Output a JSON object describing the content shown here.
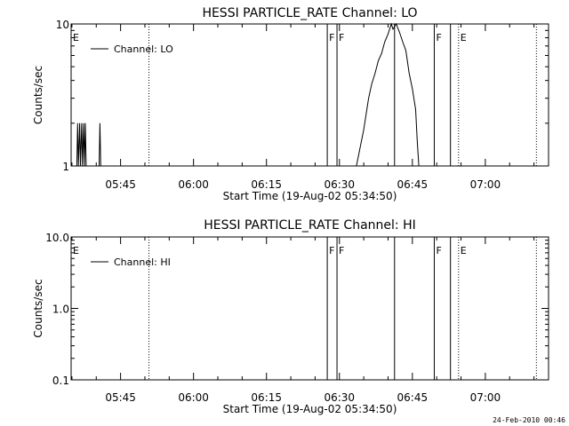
{
  "footer_timestamp": "24-Feb-2010 00:46",
  "chart_data": [
    {
      "type": "line",
      "title": "HESSI PARTICLE_RATE Channel: LO",
      "xlabel": "Start Time (19-Aug-02 05:34:50)",
      "ylabel": "Counts/sec",
      "yscale": "log",
      "ylim": [
        1,
        10
      ],
      "yticks": [
        1,
        10
      ],
      "ytick_labels": [
        "1",
        "10"
      ],
      "xlim": [
        "05:34:50",
        "07:13:00"
      ],
      "xticks": [
        "05:45",
        "06:00",
        "06:15",
        "06:30",
        "06:45",
        "07:00"
      ],
      "legend": {
        "location": "top-left",
        "entries": [
          "Channel: LO"
        ]
      },
      "series": [
        {
          "name": "Channel: LO",
          "points": [
            [
              "05:36:00",
              1
            ],
            [
              "05:36:10",
              2
            ],
            [
              "05:36:20",
              1
            ],
            [
              "05:36:35",
              2
            ],
            [
              "05:36:45",
              1
            ],
            [
              "05:37:00",
              2
            ],
            [
              "05:37:10",
              1
            ],
            [
              "05:37:25",
              2
            ],
            [
              "05:37:35",
              1
            ],
            [
              "05:37:45",
              2
            ],
            [
              "05:37:55",
              1
            ],
            [
              "05:40:35",
              1
            ],
            [
              "05:40:45",
              2
            ],
            [
              "05:40:55",
              1
            ],
            [
              "06:33:30",
              1
            ],
            [
              "06:35:00",
              1.8
            ],
            [
              "06:36:00",
              3
            ],
            [
              "06:36:40",
              3.8
            ],
            [
              "06:37:20",
              4.5
            ],
            [
              "06:38:00",
              5.5
            ],
            [
              "06:38:40",
              6.2
            ],
            [
              "06:39:20",
              7.5
            ],
            [
              "06:40:00",
              8.5
            ],
            [
              "06:40:40",
              10
            ],
            [
              "06:41:00",
              9.2
            ],
            [
              "06:41:40",
              10
            ],
            [
              "06:42:20",
              8.8
            ],
            [
              "06:43:00",
              7.5
            ],
            [
              "06:43:40",
              6.5
            ],
            [
              "06:44:20",
              4.5
            ],
            [
              "06:45:00",
              3.5
            ],
            [
              "06:45:40",
              2.5
            ],
            [
              "06:46:00",
              1.5
            ],
            [
              "06:46:20",
              1
            ]
          ]
        }
      ],
      "markers": [
        {
          "time": "05:34:50",
          "label": "E",
          "style": "solid"
        },
        {
          "time": "05:50:50",
          "label": "",
          "style": "dotted"
        },
        {
          "time": "06:27:30",
          "label": "F",
          "style": "solid"
        },
        {
          "time": "06:29:30",
          "label": "F",
          "style": "solid"
        },
        {
          "time": "06:41:20",
          "label": "",
          "style": "solid"
        },
        {
          "time": "06:49:30",
          "label": "F",
          "style": "solid"
        },
        {
          "time": "06:52:50",
          "label": "",
          "style": "solid"
        },
        {
          "time": "06:54:30",
          "label": "E",
          "style": "dotted"
        },
        {
          "time": "07:10:30",
          "label": "",
          "style": "dotted"
        }
      ]
    },
    {
      "type": "line",
      "title": "HESSI PARTICLE_RATE Channel: HI",
      "xlabel": "Start Time (19-Aug-02 05:34:50)",
      "ylabel": "Counts/sec",
      "yscale": "log",
      "ylim": [
        0.1,
        10
      ],
      "yticks": [
        0.1,
        1,
        10
      ],
      "ytick_labels": [
        "0.1",
        "1.0",
        "10.0"
      ],
      "xlim": [
        "05:34:50",
        "07:13:00"
      ],
      "xticks": [
        "05:45",
        "06:00",
        "06:15",
        "06:30",
        "06:45",
        "07:00"
      ],
      "legend": {
        "location": "top-left",
        "entries": [
          "Channel: HI"
        ]
      },
      "series": [
        {
          "name": "Channel: HI",
          "points": []
        }
      ],
      "markers": [
        {
          "time": "05:34:50",
          "label": "E",
          "style": "solid"
        },
        {
          "time": "05:50:50",
          "label": "",
          "style": "dotted"
        },
        {
          "time": "06:27:30",
          "label": "F",
          "style": "solid"
        },
        {
          "time": "06:29:30",
          "label": "F",
          "style": "solid"
        },
        {
          "time": "06:41:20",
          "label": "",
          "style": "solid"
        },
        {
          "time": "06:49:30",
          "label": "F",
          "style": "solid"
        },
        {
          "time": "06:52:50",
          "label": "",
          "style": "solid"
        },
        {
          "time": "06:54:30",
          "label": "E",
          "style": "dotted"
        },
        {
          "time": "07:10:30",
          "label": "",
          "style": "dotted"
        }
      ]
    }
  ]
}
